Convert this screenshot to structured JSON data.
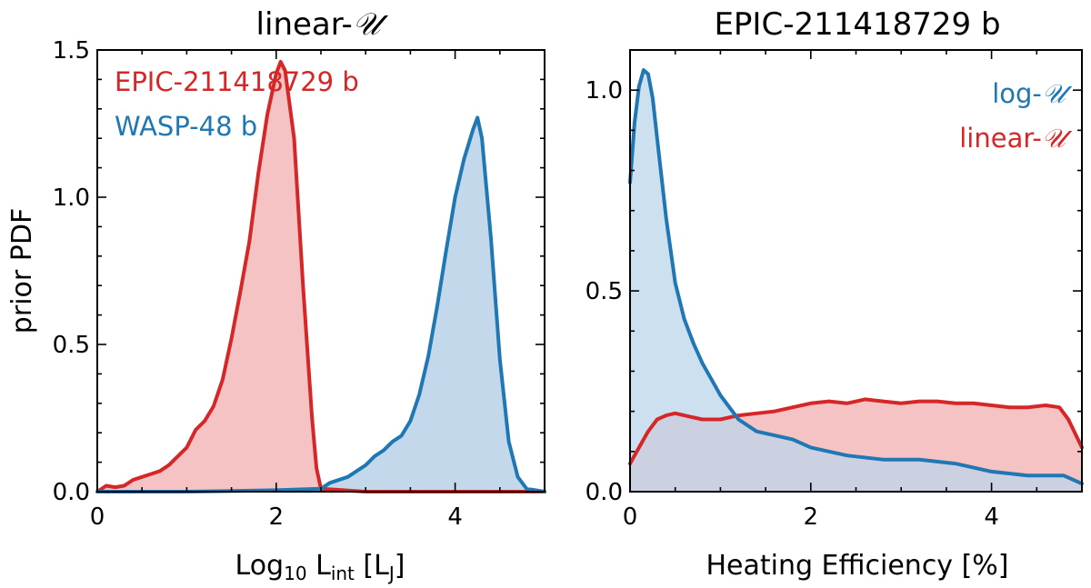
{
  "chart_data": [
    {
      "type": "area",
      "title_prefix": "linear-",
      "title_symbol": "𝒰",
      "xlabel_main": "Log",
      "xlabel_sub10": "10",
      "xlabel_mid": " L",
      "xlabel_subint": "int",
      "xlabel_unit_open": " [L",
      "xlabel_subJ": "J",
      "xlabel_unit_close": "]",
      "ylabel": "prior PDF",
      "xlim": [
        0,
        5
      ],
      "ylim": [
        0,
        1.5
      ],
      "xticks": [
        0,
        2,
        4
      ],
      "xtick_labels": [
        "0",
        "2",
        "4"
      ],
      "yticks": [
        0.0,
        0.5,
        1.0,
        1.5
      ],
      "ytick_labels": [
        "0.0",
        "0.5",
        "1.0",
        "1.5"
      ],
      "legend_position": "top-left",
      "series": [
        {
          "name": "EPIC-211418729 b",
          "color": "#d62728",
          "fill": "#f4bcbc",
          "x": [
            0.0,
            0.1,
            0.2,
            0.3,
            0.4,
            0.5,
            0.6,
            0.7,
            0.8,
            0.9,
            1.0,
            1.1,
            1.2,
            1.3,
            1.4,
            1.5,
            1.6,
            1.7,
            1.8,
            1.9,
            2.0,
            2.05,
            2.1,
            2.2,
            2.3,
            2.4,
            2.45,
            2.5,
            3.0,
            4.0,
            5.0
          ],
          "y": [
            0.0,
            0.02,
            0.015,
            0.02,
            0.04,
            0.05,
            0.06,
            0.07,
            0.09,
            0.12,
            0.15,
            0.21,
            0.24,
            0.29,
            0.38,
            0.52,
            0.68,
            0.85,
            1.08,
            1.28,
            1.42,
            1.46,
            1.43,
            1.2,
            0.7,
            0.25,
            0.08,
            0.01,
            0.0,
            0.0,
            0.0
          ]
        },
        {
          "name": "WASP-48 b",
          "color": "#1f77b4",
          "fill": "#bcd5e9",
          "x": [
            0.0,
            1.0,
            2.0,
            2.5,
            2.6,
            2.8,
            3.0,
            3.1,
            3.2,
            3.3,
            3.4,
            3.5,
            3.6,
            3.7,
            3.8,
            3.9,
            4.0,
            4.1,
            4.2,
            4.25,
            4.3,
            4.4,
            4.5,
            4.6,
            4.7,
            4.8,
            5.0
          ],
          "y": [
            0.0,
            0.0,
            0.005,
            0.01,
            0.03,
            0.05,
            0.09,
            0.12,
            0.14,
            0.17,
            0.19,
            0.24,
            0.33,
            0.46,
            0.63,
            0.82,
            1.0,
            1.13,
            1.23,
            1.27,
            1.2,
            0.86,
            0.45,
            0.17,
            0.05,
            0.01,
            0.0
          ]
        }
      ]
    },
    {
      "type": "area",
      "title": "EPIC-211418729 b",
      "xlabel": "Heating Efficiency [%]",
      "xlim": [
        0,
        5
      ],
      "ylim": [
        0,
        1.1
      ],
      "xticks": [
        0,
        2,
        4
      ],
      "xtick_labels": [
        "0",
        "2",
        "4"
      ],
      "yticks": [
        0.0,
        0.5,
        1.0
      ],
      "ytick_labels": [
        "0.0",
        "0.5",
        "1.0"
      ],
      "legend_position": "top-right",
      "series": [
        {
          "name_prefix": "log-",
          "name_symbol": "𝒰",
          "color": "#1f77b4",
          "fill": "#bcd5e9",
          "x": [
            0.0,
            0.05,
            0.1,
            0.15,
            0.2,
            0.25,
            0.3,
            0.4,
            0.5,
            0.6,
            0.7,
            0.8,
            0.9,
            1.0,
            1.2,
            1.4,
            1.6,
            1.8,
            2.0,
            2.4,
            2.8,
            3.2,
            3.6,
            4.0,
            4.4,
            4.8,
            5.0
          ],
          "y": [
            0.77,
            0.92,
            1.01,
            1.05,
            1.04,
            0.98,
            0.88,
            0.68,
            0.52,
            0.43,
            0.37,
            0.32,
            0.28,
            0.24,
            0.18,
            0.15,
            0.14,
            0.13,
            0.11,
            0.09,
            0.08,
            0.08,
            0.07,
            0.05,
            0.04,
            0.04,
            0.02
          ]
        },
        {
          "name_prefix": "linear-",
          "name_symbol": "𝒰",
          "color": "#d62728",
          "fill": "#f4bcbc",
          "x": [
            0.0,
            0.1,
            0.2,
            0.3,
            0.4,
            0.5,
            0.6,
            0.8,
            1.0,
            1.2,
            1.4,
            1.6,
            1.8,
            2.0,
            2.2,
            2.4,
            2.6,
            2.8,
            3.0,
            3.2,
            3.4,
            3.6,
            3.8,
            4.0,
            4.2,
            4.4,
            4.6,
            4.75,
            4.85,
            5.0
          ],
          "y": [
            0.07,
            0.11,
            0.15,
            0.18,
            0.19,
            0.195,
            0.19,
            0.18,
            0.18,
            0.19,
            0.195,
            0.2,
            0.21,
            0.22,
            0.225,
            0.22,
            0.23,
            0.225,
            0.22,
            0.225,
            0.225,
            0.22,
            0.22,
            0.215,
            0.21,
            0.21,
            0.215,
            0.21,
            0.18,
            0.11
          ]
        }
      ]
    }
  ]
}
